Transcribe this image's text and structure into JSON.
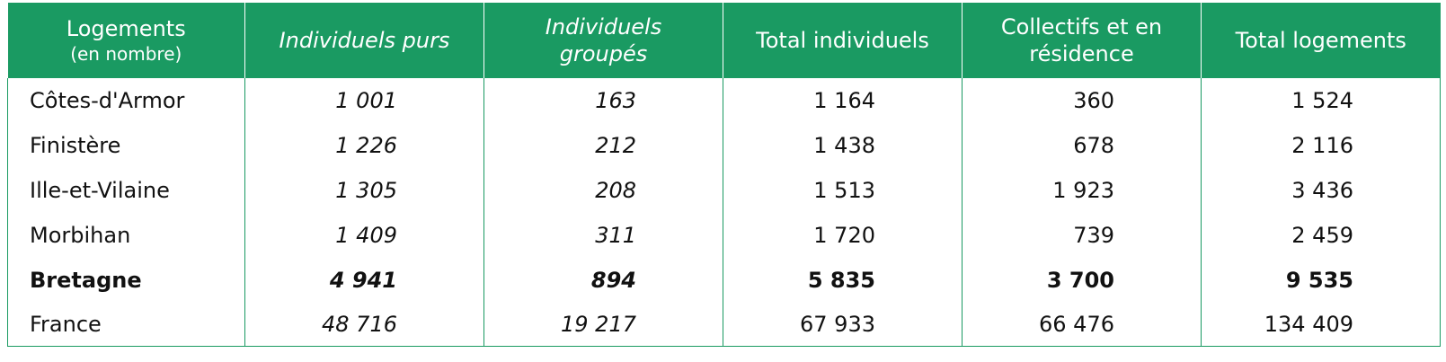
{
  "table": {
    "header": [
      [
        "Logements",
        "(en nombre)"
      ],
      [
        "Individuels purs"
      ],
      [
        "Individuels",
        "groupés"
      ],
      [
        "Total individuels"
      ],
      [
        "Collectifs et en",
        "résidence"
      ],
      [
        "Total logements"
      ]
    ],
    "rows": [
      {
        "label": "Côtes-d'Armor",
        "values": [
          "1 001",
          "163",
          "1 164",
          "360",
          "1 524"
        ]
      },
      {
        "label": "Finistère",
        "values": [
          "1 226",
          "212",
          "1 438",
          "678",
          "2 116"
        ]
      },
      {
        "label": "Ille-et-Vilaine",
        "values": [
          "1 305",
          "208",
          "1 513",
          "1 923",
          "3 436"
        ]
      },
      {
        "label": "Morbihan",
        "values": [
          "1 409",
          "311",
          "1 720",
          "739",
          "2 459"
        ]
      },
      {
        "label": "Bretagne",
        "values": [
          "4 941",
          "894",
          "5 835",
          "3 700",
          "9 535"
        ],
        "bold": true
      },
      {
        "label": "France",
        "values": [
          "48 716",
          "19 217",
          "67 933",
          "66 476",
          "134 409"
        ]
      }
    ]
  }
}
